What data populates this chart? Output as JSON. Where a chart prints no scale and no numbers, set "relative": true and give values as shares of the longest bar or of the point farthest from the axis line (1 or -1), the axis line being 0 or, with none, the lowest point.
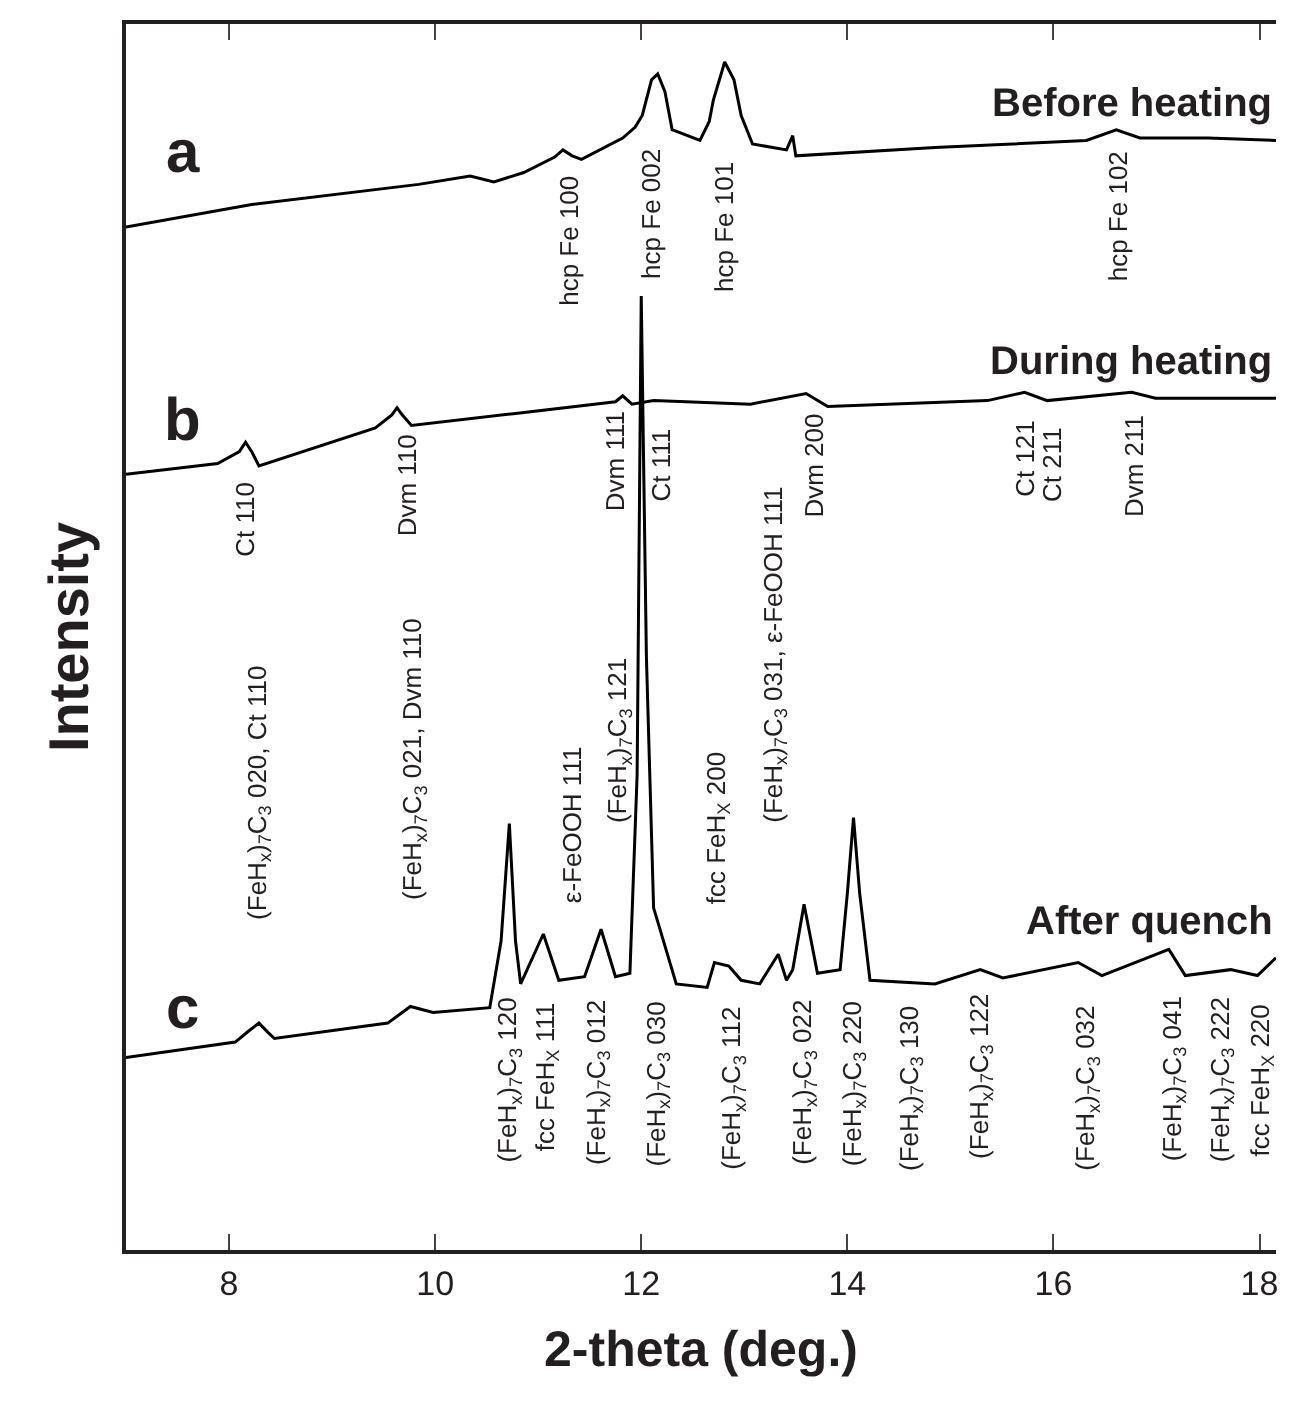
{
  "chart_data": {
    "type": "line",
    "relative": true,
    "xlabel": "2-theta (deg.)",
    "ylabel": "Intensity",
    "xlim": [
      7,
      18.16
    ],
    "xticks": [
      8,
      10,
      12,
      14,
      16,
      18
    ],
    "legend": false,
    "marker": "none",
    "line_style": "solid",
    "series": [
      {
        "name": "Before heating",
        "color": "#000000",
        "x": [
          7.0,
          8.22,
          9.84,
          10.34,
          10.57,
          10.86,
          11.16,
          11.24,
          11.33,
          11.42,
          11.82,
          11.94,
          12.01,
          12.1,
          12.16,
          12.23,
          12.3,
          12.57,
          12.66,
          12.7,
          12.81,
          12.9,
          12.97,
          13.08,
          13.41,
          13.47,
          13.5,
          14.85,
          16.32,
          16.61,
          16.84,
          17.5,
          18.16
        ],
        "values": [
          0.861,
          0.88,
          0.897,
          0.904,
          0.899,
          0.907,
          0.92,
          0.926,
          0.921,
          0.918,
          0.936,
          0.945,
          0.955,
          0.985,
          0.99,
          0.975,
          0.943,
          0.934,
          0.95,
          0.968,
          1.0,
          0.985,
          0.955,
          0.931,
          0.926,
          0.938,
          0.921,
          0.928,
          0.934,
          0.943,
          0.936,
          0.936,
          0.934
        ]
      },
      {
        "name": "During heating",
        "color": "#000000",
        "x": [
          7.0,
          7.89,
          8.1,
          8.16,
          8.22,
          8.29,
          9.42,
          9.58,
          9.63,
          9.68,
          9.77,
          10.76,
          11.75,
          11.82,
          11.91,
          12.12,
          13.06,
          13.6,
          13.81,
          15.36,
          15.72,
          15.94,
          16.76,
          16.99,
          18.16
        ],
        "values": [
          0.653,
          0.662,
          0.672,
          0.68,
          0.672,
          0.66,
          0.692,
          0.703,
          0.709,
          0.703,
          0.694,
          0.704,
          0.714,
          0.719,
          0.712,
          0.715,
          0.712,
          0.721,
          0.71,
          0.715,
          0.722,
          0.715,
          0.722,
          0.717,
          0.717
        ]
      },
      {
        "name": "After quench",
        "color": "#000000",
        "x": [
          7.0,
          8.06,
          8.2,
          8.29,
          8.38,
          8.44,
          9.54,
          9.76,
          9.98,
          10.53,
          10.64,
          10.72,
          10.78,
          10.83,
          11.05,
          11.2,
          11.45,
          11.61,
          11.75,
          11.89,
          11.96,
          12.0,
          12.05,
          12.12,
          12.34,
          12.64,
          12.71,
          12.85,
          12.97,
          13.15,
          13.33,
          13.41,
          13.47,
          13.58,
          13.71,
          13.93,
          14.0,
          14.06,
          14.12,
          14.22,
          14.85,
          15.29,
          15.51,
          16.24,
          16.47,
          17.12,
          17.28,
          17.72,
          17.98,
          18.16
        ],
        "values": [
          0.162,
          0.175,
          0.185,
          0.191,
          0.183,
          0.178,
          0.191,
          0.205,
          0.2,
          0.204,
          0.26,
          0.359,
          0.26,
          0.224,
          0.266,
          0.227,
          0.23,
          0.27,
          0.23,
          0.233,
          0.4,
          0.803,
          0.5,
          0.288,
          0.224,
          0.221,
          0.242,
          0.239,
          0.227,
          0.224,
          0.249,
          0.227,
          0.236,
          0.291,
          0.233,
          0.236,
          0.3,
          0.364,
          0.3,
          0.227,
          0.224,
          0.236,
          0.229,
          0.242,
          0.231,
          0.253,
          0.231,
          0.236,
          0.231,
          0.246
        ]
      }
    ],
    "annotations": [
      "a",
      "b",
      "c",
      {
        "text": "hcp Fe 100",
        "x": 11.31,
        "y": 0.922
      },
      {
        "text": "hcp Fe 002",
        "x": 12.09,
        "y": 0.982
      },
      "hcp Fe 101",
      {
        "text": "hcp Fe 102",
        "x": 16.64,
        "y": 0.942
      },
      {
        "text": "Ct 110",
        "x": 8.16,
        "y": 0.68
      },
      {
        "text": "Dvm 110",
        "x": 9.73,
        "y": 0.697
      },
      {
        "text": "Dvm 111",
        "x": 11.75,
        "y": 0.714
      },
      {
        "text": "Ct 111",
        "x": 12.19,
        "y": 0.715
      },
      {
        "text": "Dvm 200",
        "x": 13.67,
        "y": 0.717
      },
      {
        "text": "Ct 121",
        "x": 15.72,
        "y": 0.722
      },
      {
        "text": "Ct 211",
        "x": 15.99,
        "y": 0.715
      },
      {
        "text": "Dvm 211",
        "x": 16.78,
        "y": 0.722
      },
      "(FeH$_{x}$)$_{7}$C$_{3}$ 020, Ct 110",
      "(FeH$_{x}$)$_{7}$C$_{3}$ 021, Dvm 110",
      {
        "text": "ε-FeOOH 111",
        "x": 11.34,
        "y": 0.229
      },
      "(FeH$_{x}$)$_{7}$C$_{3}$ 121",
      {
        "text": "fcc FeH$_{X}$ 200",
        "x": 12.75,
        "y": 0.241
      },
      "(FeH$_{x}$)$_{7}$C$_{3}$ 031, ε-FeOOH 111",
      "(FeH$_{x}$)$_{7}$C$_{3}$ 120",
      {
        "text": "fcc FeH$_{X}$ 111",
        "x": 11.09,
        "y": 0.256
      },
      {
        "text": "(FeH$_{x}$)$_{7}$C$_{3}$ 012",
        "x": 11.57,
        "y": 0.26
      },
      "(FeH$_{x}$)$_{7}$C$_{3}$ 030",
      {
        "text": "(FeH$_{x}$)$_{7}$C$_{3}$ 112",
        "x": 12.89,
        "y": 0.235
      },
      "(FeH$_{x}$)$_{7}$C$_{3}$ 022",
      "(FeH$_{x}$)$_{7}$C$_{3}$ 220",
      {
        "text": "(FeH$_{x}$)$_{7}$C$_{3}$ 130",
        "x": 14.62,
        "y": 0.225
      },
      {
        "text": "(FeH$_{x}$)$_{7}$C$_{3}$ 122",
        "x": 15.29,
        "y": 0.236
      },
      {
        "text": "(FeH$_{x}$)$_{7}$C$_{3}$ 032",
        "x": 16.32,
        "y": 0.238
      },
      {
        "text": "(FeH$_{x}$)$_{7}$C$_{3}$ 041",
        "x": 17.16,
        "y": 0.248
      },
      {
        "text": "(FeH$_{x}$)$_{7}$C$_{3}$ 222",
        "x": 17.64,
        "y": 0.235
      },
      {
        "text": "fcc FeH$_{X}$ 220",
        "x": 18.01,
        "y": 0.234
      }
    ]
  }
}
